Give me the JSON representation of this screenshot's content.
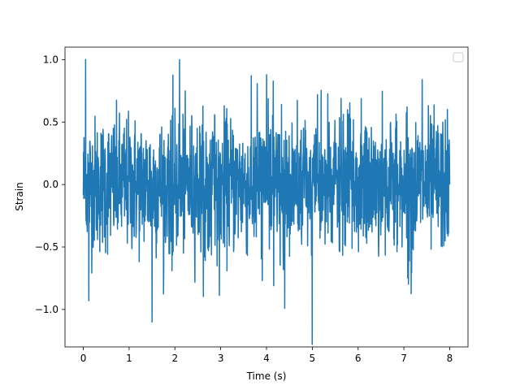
{
  "chart_data": {
    "type": "line",
    "title": "",
    "xlabel": "Time (s)",
    "ylabel": "Strain",
    "xlim": [
      -0.4,
      8.4
    ],
    "ylim": [
      -1.3,
      1.1
    ],
    "xticks": [
      0,
      1,
      2,
      3,
      4,
      5,
      6,
      7,
      8
    ],
    "xtick_labels": [
      "0",
      "1",
      "2",
      "3",
      "4",
      "5",
      "6",
      "7",
      "8"
    ],
    "yticks": [
      -1.0,
      -0.5,
      0.0,
      0.5,
      1.0
    ],
    "ytick_labels": [
      "−1.0",
      "−0.5",
      "0.0",
      "0.5",
      "1.0"
    ],
    "grid": false,
    "legend": {
      "placement": "top-right",
      "entries": []
    },
    "series": [
      {
        "color": "#1f77b4",
        "x_range": [
          0,
          8
        ],
        "sample_count": 1600,
        "envelope": {
          "typical_low": -0.5,
          "typical_high": 0.5,
          "min": -1.28,
          "max": 1.0
        },
        "notable_points": [
          {
            "x": 0.05,
            "y": 1.0
          },
          {
            "x": 2.1,
            "y": 1.0
          },
          {
            "x": 1.5,
            "y": -1.1
          },
          {
            "x": 5.0,
            "y": -1.28
          },
          {
            "x": 4.4,
            "y": -0.99
          },
          {
            "x": 0.12,
            "y": -0.93
          },
          {
            "x": 4.0,
            "y": 0.88
          },
          {
            "x": 7.4,
            "y": 0.84
          },
          {
            "x": 8.0,
            "y": 0.0
          }
        ]
      }
    ]
  }
}
